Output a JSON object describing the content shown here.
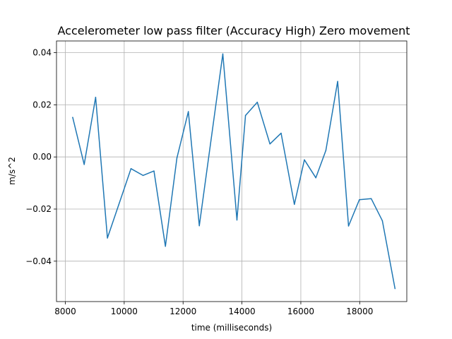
{
  "chart_data": {
    "type": "line",
    "title": "Accelerometer low pass filter (Accuracy High) Zero movement",
    "xlabel": "time (milliseconds)",
    "ylabel": "m/s^2",
    "xlim": [
      7700,
      19600
    ],
    "ylim": [
      -0.0555,
      0.0445
    ],
    "xticks": [
      8000,
      10000,
      12000,
      14000,
      16000,
      18000
    ],
    "xtick_labels": [
      "8000",
      "10000",
      "12000",
      "14000",
      "16000",
      "18000"
    ],
    "yticks": [
      -0.04,
      -0.02,
      0.0,
      0.02,
      0.04
    ],
    "ytick_labels": [
      "−0.04",
      "−0.02",
      "0.00",
      "0.02",
      "0.04"
    ],
    "grid": true,
    "series": [
      {
        "color": "#1f77b4",
        "x": [
          8250,
          8640,
          9030,
          9430,
          10230,
          10640,
          11010,
          11400,
          11790,
          12180,
          12550,
          13350,
          13830,
          14120,
          14520,
          14950,
          15330,
          15780,
          16120,
          16510,
          16850,
          17250,
          17620,
          17990,
          18390,
          18770,
          19200
        ],
        "y": [
          0.0152,
          -0.0029,
          0.0229,
          -0.0311,
          -0.0045,
          -0.0071,
          -0.0054,
          -0.0343,
          -0.0004,
          0.0174,
          -0.0264,
          0.0395,
          -0.0242,
          0.0159,
          0.021,
          0.005,
          0.0091,
          -0.0182,
          -0.0011,
          -0.008,
          0.0025,
          0.029,
          -0.0265,
          -0.0164,
          -0.016,
          -0.0245,
          -0.0505
        ]
      }
    ]
  }
}
